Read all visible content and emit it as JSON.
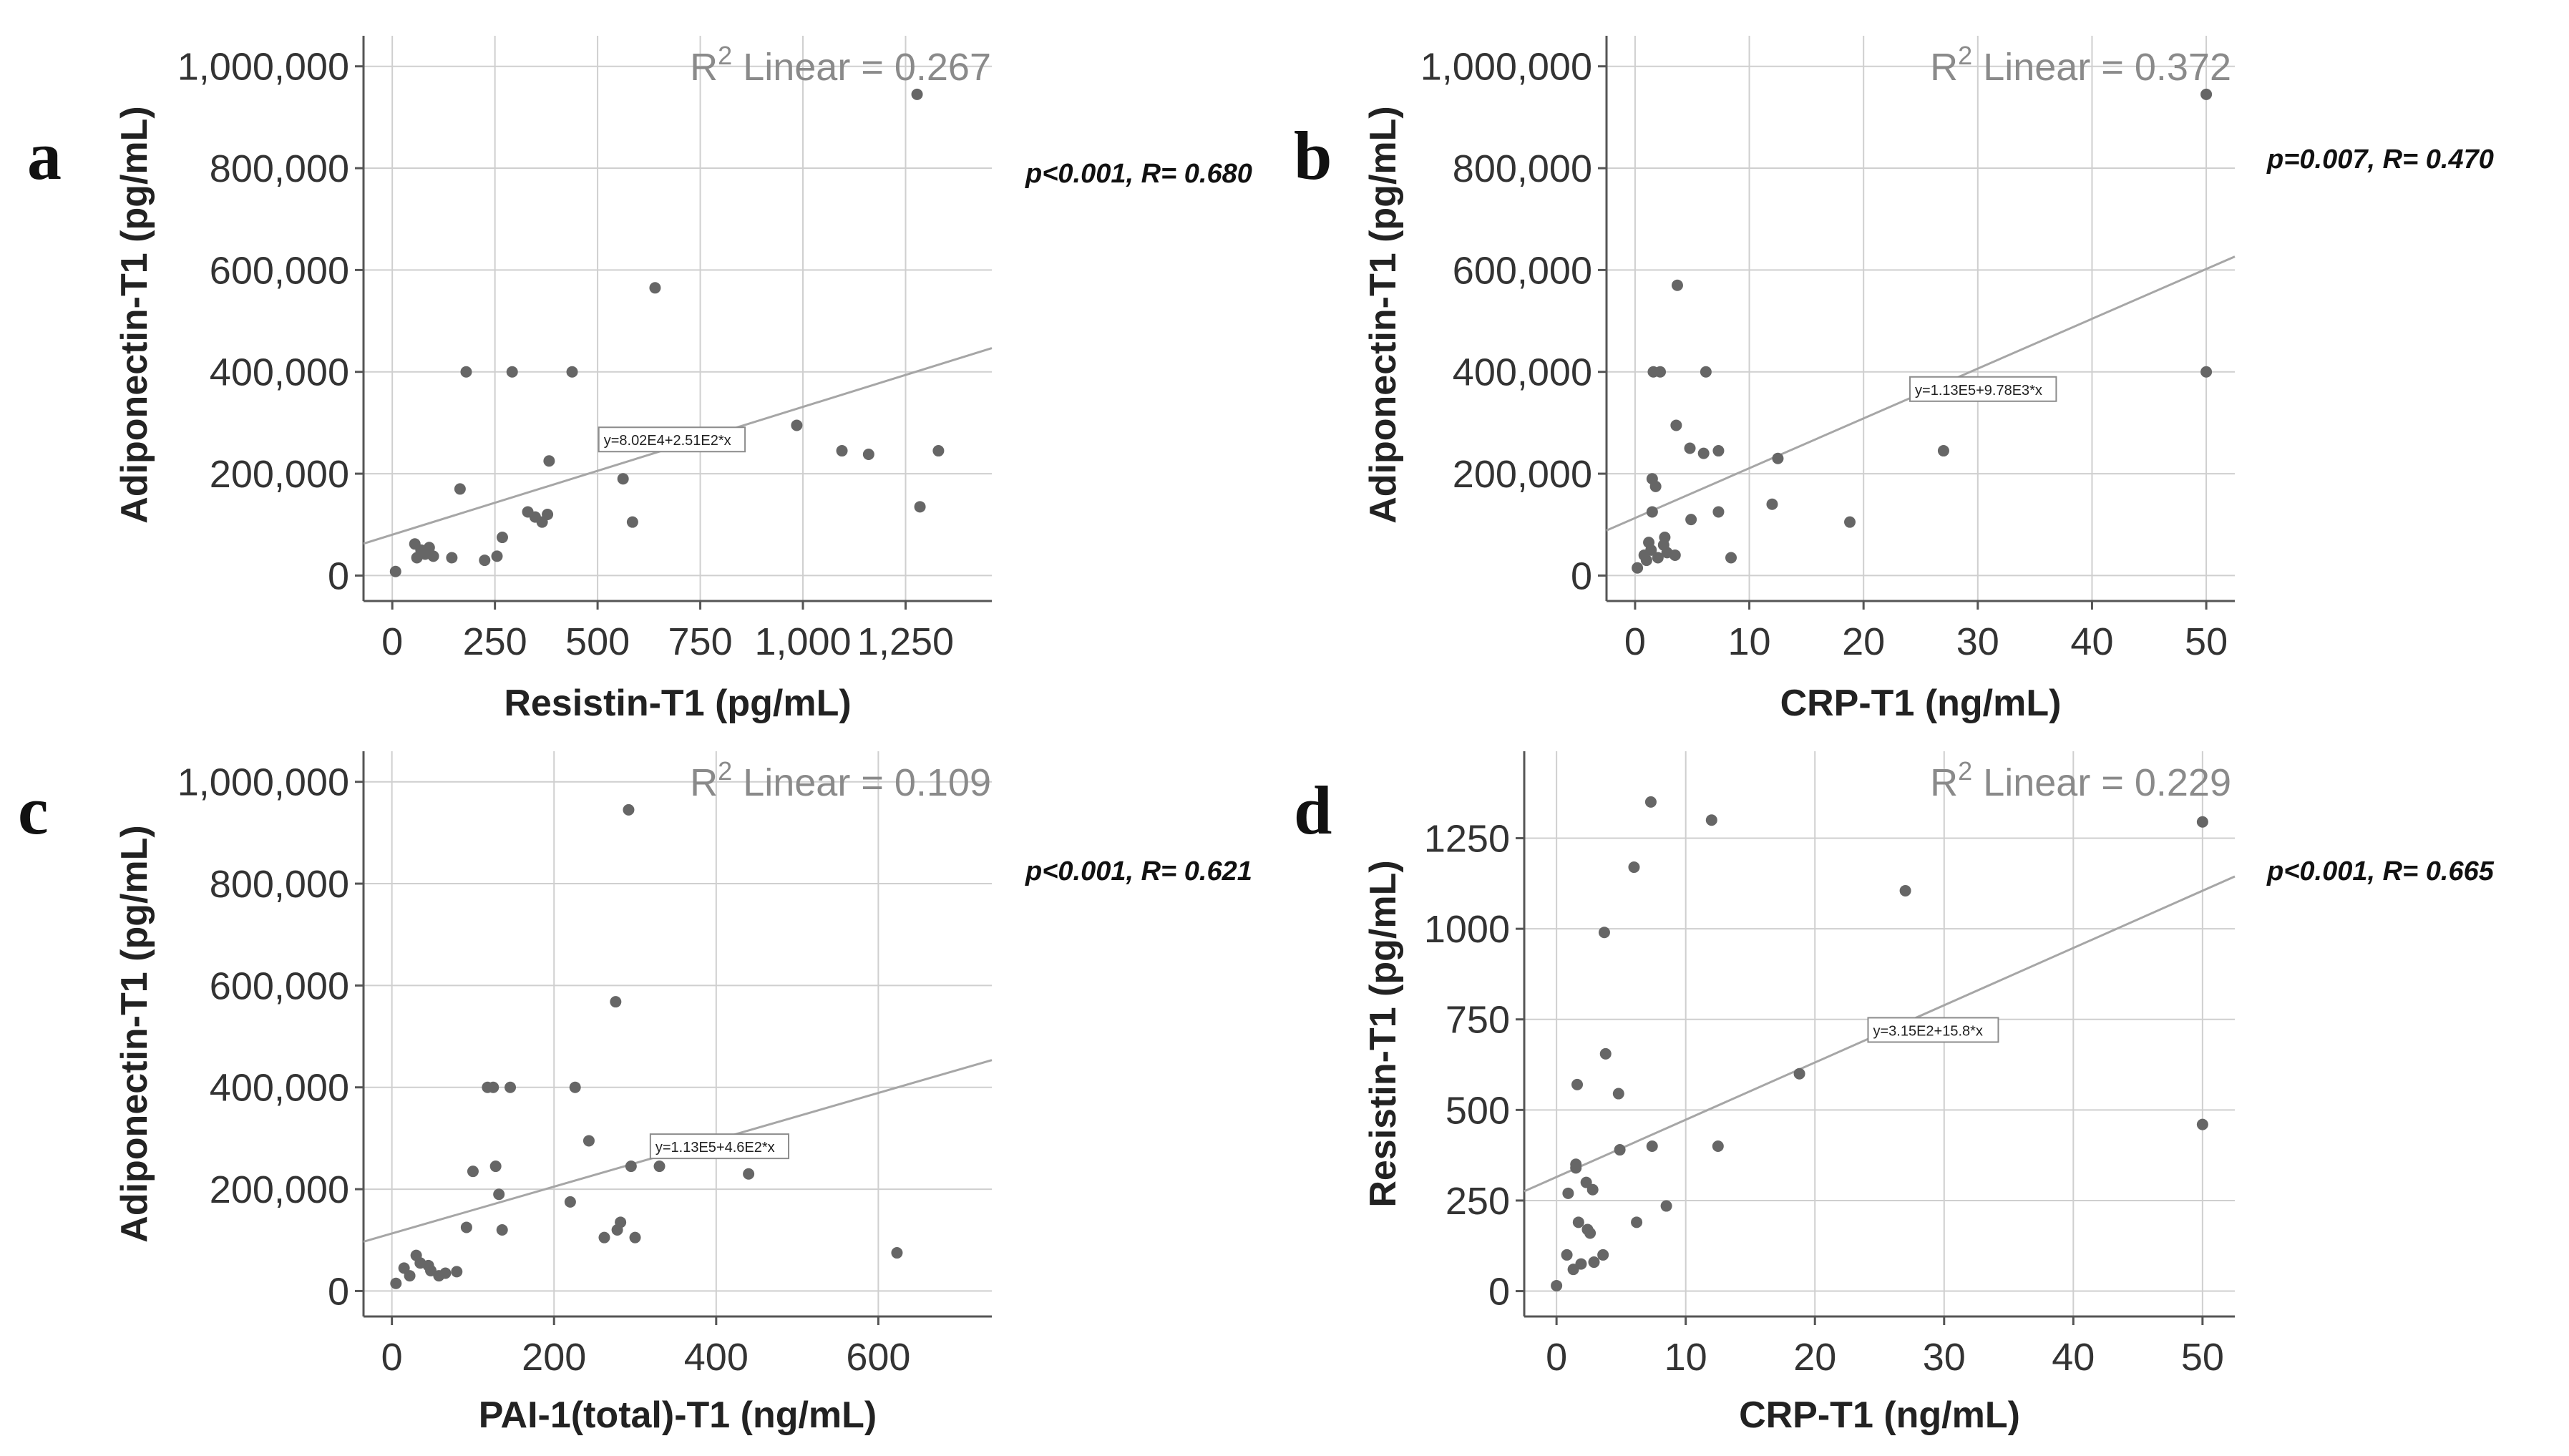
{
  "colors": {
    "grid": "#cfcfcf",
    "frame": "#555555",
    "point": "#666666",
    "fit_line": "#a6a6a6"
  },
  "chart_data": [
    {
      "panel": "a",
      "type": "scatter",
      "xlabel": "Resistin-T1 (pg/mL)",
      "ylabel": "Adiponectin-T1 (pg/mL)",
      "xlim": [
        -70,
        1460
      ],
      "ylim": [
        -50000,
        1060000
      ],
      "xticks": [
        0,
        250,
        500,
        750,
        1000,
        1250
      ],
      "xtick_labels": [
        "0",
        "250",
        "500",
        "750",
        "1,000",
        "1,250"
      ],
      "yticks": [
        0,
        200000,
        400000,
        600000,
        800000,
        1000000
      ],
      "ytick_labels": [
        "0",
        "200,000",
        "400,000",
        "600,000",
        "800,000",
        "1,000,000"
      ],
      "r2_prefix": "R",
      "r2_sup": "2",
      "r2_text": " Linear = 0.267",
      "stats": "p<0.001, R= 0.680",
      "equation": "y=8.02E4+2.51E2*x",
      "fit": {
        "intercept": 80200,
        "slope": 251
      },
      "equation_anchor": [
        515,
        263000
      ],
      "points": [
        [
          8,
          8000
        ],
        [
          55,
          62000
        ],
        [
          60,
          35000
        ],
        [
          70,
          50000
        ],
        [
          80,
          42000
        ],
        [
          90,
          55000
        ],
        [
          100,
          38000
        ],
        [
          145,
          35000
        ],
        [
          165,
          170000
        ],
        [
          180,
          400000
        ],
        [
          225,
          30000
        ],
        [
          255,
          38000
        ],
        [
          268,
          75000
        ],
        [
          292,
          400000
        ],
        [
          330,
          125000
        ],
        [
          348,
          115000
        ],
        [
          365,
          105000
        ],
        [
          378,
          120000
        ],
        [
          382,
          225000
        ],
        [
          438,
          400000
        ],
        [
          562,
          190000
        ],
        [
          585,
          105000
        ],
        [
          640,
          565000
        ],
        [
          985,
          295000
        ],
        [
          1095,
          245000
        ],
        [
          1160,
          238000
        ],
        [
          1278,
          945000
        ],
        [
          1285,
          135000
        ],
        [
          1330,
          245000
        ]
      ]
    },
    {
      "panel": "b",
      "type": "scatter",
      "xlabel": "CRP-T1 (ng/mL)",
      "ylabel": "Adiponectin-T1 (pg/mL)",
      "xlim": [
        -2.5,
        52.5
      ],
      "ylim": [
        -50000,
        1060000
      ],
      "xticks": [
        0,
        10,
        20,
        30,
        40,
        50
      ],
      "xtick_labels": [
        "0",
        "10",
        "20",
        "30",
        "40",
        "50"
      ],
      "yticks": [
        0,
        200000,
        400000,
        600000,
        800000,
        1000000
      ],
      "ytick_labels": [
        "0",
        "200,000",
        "400,000",
        "600,000",
        "800,000",
        "1,000,000"
      ],
      "r2_prefix": "R",
      "r2_sup": "2",
      "r2_text": " Linear = 0.372",
      "stats": "p=0.007, R= 0.470",
      "equation": "y=1.13E5+9.78E3*x",
      "fit": {
        "intercept": 113000,
        "slope": 9780
      },
      "equation_anchor": [
        24.5,
        362000
      ],
      "points": [
        [
          0.2,
          15000
        ],
        [
          0.8,
          40000
        ],
        [
          1,
          30000
        ],
        [
          1.2,
          65000
        ],
        [
          1.4,
          50000
        ],
        [
          1.5,
          125000
        ],
        [
          1.5,
          190000
        ],
        [
          1.6,
          400000
        ],
        [
          1.8,
          175000
        ],
        [
          2,
          35000
        ],
        [
          2.2,
          400000
        ],
        [
          2.5,
          60000
        ],
        [
          2.6,
          75000
        ],
        [
          2.8,
          45000
        ],
        [
          3.5,
          40000
        ],
        [
          3.6,
          295000
        ],
        [
          3.7,
          570000
        ],
        [
          4.8,
          250000
        ],
        [
          4.9,
          110000
        ],
        [
          6,
          240000
        ],
        [
          6.2,
          400000
        ],
        [
          7.3,
          125000
        ],
        [
          7.3,
          245000
        ],
        [
          8.4,
          35000
        ],
        [
          12,
          140000
        ],
        [
          12.5,
          230000
        ],
        [
          18.8,
          105000
        ],
        [
          27,
          245000
        ],
        [
          50,
          945000
        ],
        [
          50,
          400000
        ]
      ]
    },
    {
      "panel": "c",
      "type": "scatter",
      "xlabel": "PAI-1(total)-T1 (ng/mL)",
      "ylabel": "Adiponectin-T1 (pg/mL)",
      "xlim": [
        -35,
        740
      ],
      "ylim": [
        -50000,
        1060000
      ],
      "xticks": [
        0,
        200,
        400,
        600
      ],
      "xtick_labels": [
        "0",
        "200",
        "400",
        "600"
      ],
      "yticks": [
        0,
        200000,
        400000,
        600000,
        800000,
        1000000
      ],
      "ytick_labels": [
        "0",
        "200,000",
        "400,000",
        "600,000",
        "800,000",
        "1,000,000"
      ],
      "r2_prefix": "R",
      "r2_sup": "2",
      "r2_text": " Linear = 0.109",
      "stats": "p<0.001, R= 0.621",
      "equation": "y=1.13E5+4.6E2*x",
      "fit": {
        "intercept": 113000,
        "slope": 460
      },
      "equation_anchor": [
        325,
        280000
      ],
      "points": [
        [
          5,
          15000
        ],
        [
          15,
          45000
        ],
        [
          22,
          30000
        ],
        [
          30,
          70000
        ],
        [
          35,
          55000
        ],
        [
          45,
          50000
        ],
        [
          48,
          40000
        ],
        [
          58,
          30000
        ],
        [
          66,
          35000
        ],
        [
          80,
          38000
        ],
        [
          92,
          125000
        ],
        [
          100,
          235000
        ],
        [
          118,
          400000
        ],
        [
          125,
          400000
        ],
        [
          128,
          245000
        ],
        [
          132,
          190000
        ],
        [
          136,
          120000
        ],
        [
          146,
          400000
        ],
        [
          220,
          175000
        ],
        [
          226,
          400000
        ],
        [
          243,
          295000
        ],
        [
          262,
          105000
        ],
        [
          276,
          568000
        ],
        [
          278,
          120000
        ],
        [
          282,
          135000
        ],
        [
          292,
          945000
        ],
        [
          295,
          245000
        ],
        [
          300,
          105000
        ],
        [
          330,
          245000
        ],
        [
          440,
          230000
        ],
        [
          623,
          75000
        ]
      ]
    },
    {
      "panel": "d",
      "type": "scatter",
      "xlabel": "CRP-T1 (ng/mL)",
      "ylabel": "Resistin-T1 (pg/mL)",
      "xlim": [
        -2.5,
        52.5
      ],
      "ylim": [
        -70,
        1490
      ],
      "xticks": [
        0,
        10,
        20,
        30,
        40,
        50
      ],
      "xtick_labels": [
        "0",
        "10",
        "20",
        "30",
        "40",
        "50"
      ],
      "yticks": [
        0,
        250,
        500,
        750,
        1000,
        1250
      ],
      "ytick_labels": [
        "0",
        "250",
        "500",
        "750",
        "1000",
        "1250"
      ],
      "r2_prefix": "R",
      "r2_sup": "2",
      "r2_text": " Linear = 0.229",
      "stats": "p<0.001, R= 0.665",
      "equation": "y=3.15E2+15.8*x",
      "fit": {
        "intercept": 315,
        "slope": 15.8
      },
      "equation_anchor": [
        24.5,
        715
      ],
      "points": [
        [
          0,
          15
        ],
        [
          0.8,
          100
        ],
        [
          0.9,
          270
        ],
        [
          1.3,
          60
        ],
        [
          1.5,
          350
        ],
        [
          1.5,
          340
        ],
        [
          1.6,
          570
        ],
        [
          1.7,
          190
        ],
        [
          1.9,
          75
        ],
        [
          2.3,
          300
        ],
        [
          2.4,
          170
        ],
        [
          2.6,
          160
        ],
        [
          2.8,
          280
        ],
        [
          2.9,
          80
        ],
        [
          3.6,
          100
        ],
        [
          3.7,
          990
        ],
        [
          3.8,
          655
        ],
        [
          4.8,
          545
        ],
        [
          4.9,
          390
        ],
        [
          6,
          1170
        ],
        [
          6.2,
          190
        ],
        [
          7.3,
          1350
        ],
        [
          7.4,
          400
        ],
        [
          8.5,
          235
        ],
        [
          12,
          1300
        ],
        [
          12.5,
          400
        ],
        [
          18.8,
          600
        ],
        [
          27,
          1105
        ],
        [
          50,
          1295
        ],
        [
          50,
          460
        ]
      ]
    }
  ]
}
